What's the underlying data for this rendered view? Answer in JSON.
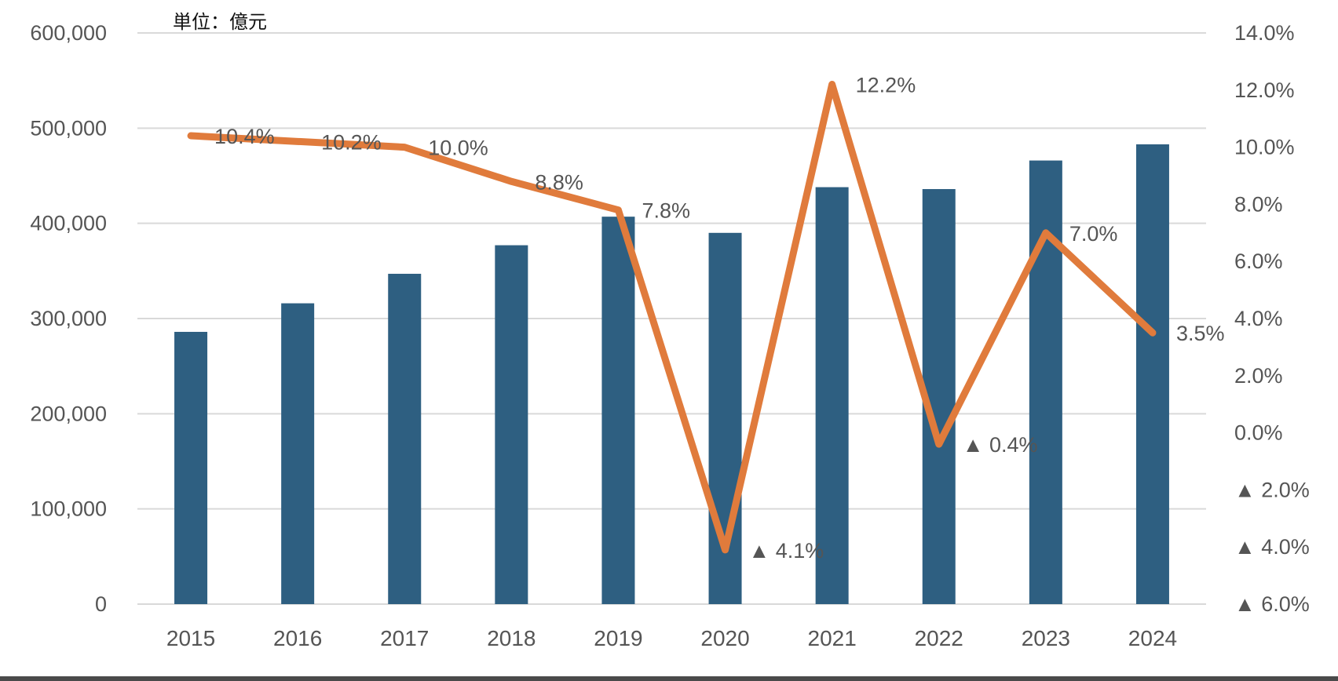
{
  "chart_data": {
    "type": "bar",
    "unit_label": "単位：億元",
    "categories": [
      "2015",
      "2016",
      "2017",
      "2018",
      "2019",
      "2020",
      "2021",
      "2022",
      "2023",
      "2024"
    ],
    "series": [
      {
        "type": "bar",
        "axis": "left",
        "values": [
          286000,
          316000,
          347000,
          377000,
          407000,
          390000,
          438000,
          436000,
          466000,
          483000
        ],
        "color": "#2e5f81"
      },
      {
        "type": "line",
        "axis": "right",
        "values": [
          10.4,
          10.2,
          10.0,
          8.8,
          7.8,
          -4.1,
          12.2,
          -0.4,
          7.0,
          3.5
        ],
        "labels": [
          "10.4%",
          "10.2%",
          "10.0%",
          "8.8%",
          "7.8%",
          "▲ 4.1%",
          "12.2%",
          "▲ 0.4%",
          "7.0%",
          "3.5%"
        ],
        "color": "#e07b3c"
      }
    ],
    "y_left": {
      "ylim": [
        0,
        600000
      ],
      "ticks": [
        0,
        100000,
        200000,
        300000,
        400000,
        500000,
        600000
      ],
      "tick_labels": [
        "0",
        "100,000",
        "200,000",
        "300,000",
        "400,000",
        "500,000",
        "600,000"
      ]
    },
    "y_right": {
      "ylim": [
        -6,
        14
      ],
      "ticks": [
        14,
        12,
        10,
        8,
        6,
        4,
        2,
        0,
        -2,
        -4,
        -6
      ],
      "tick_labels": [
        "14.0%",
        "12.0%",
        "10.0%",
        "8.0%",
        "6.0%",
        "4.0%",
        "2.0%",
        "0.0%",
        "▲ 2.0%",
        "▲ 4.0%",
        "▲ 6.0%"
      ]
    },
    "grid": true,
    "legend": "none",
    "colors": {
      "bar": "#2e5f81",
      "line": "#e07b3c",
      "grid": "#d9d9d9",
      "text": "#555555"
    }
  }
}
